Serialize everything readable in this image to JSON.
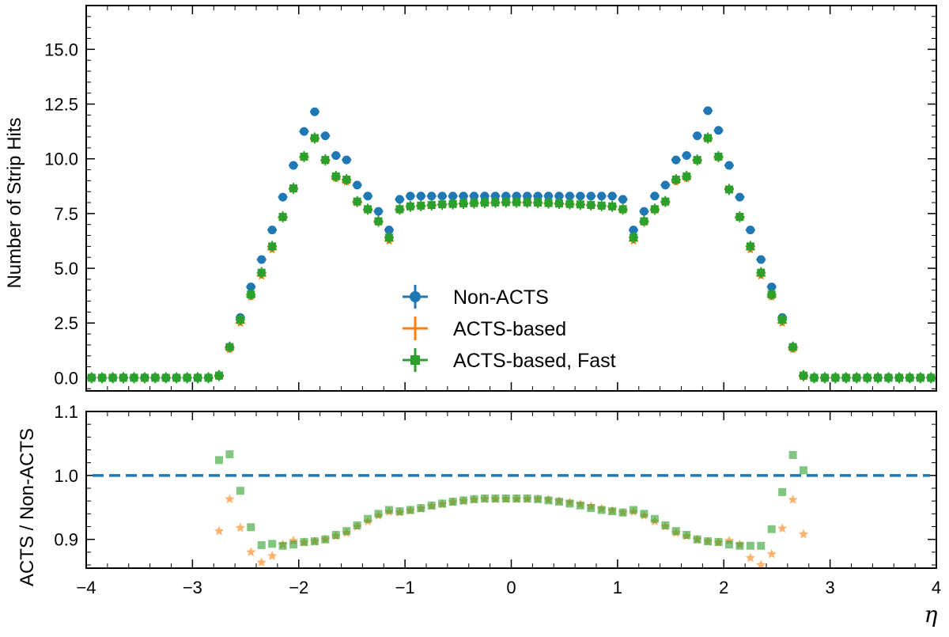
{
  "chart_data": [
    {
      "type": "scatter",
      "panel": "main",
      "ylabel": "Number of Strip Hits",
      "xlim": [
        -4,
        4
      ],
      "ylim": [
        -0.6,
        17
      ],
      "xticks": [
        -4,
        -3,
        -2,
        -1,
        0,
        1,
        2,
        3,
        4
      ],
      "yticks": [
        0.0,
        2.5,
        5.0,
        7.5,
        10.0,
        12.5,
        15.0
      ],
      "ytick_labels": [
        "0.0",
        "2.5",
        "5.0",
        "7.5",
        "10.0",
        "12.5",
        "15.0"
      ],
      "legend_position": "lower center",
      "x": [
        -3.95,
        -3.85,
        -3.75,
        -3.65,
        -3.55,
        -3.45,
        -3.35,
        -3.25,
        -3.15,
        -3.05,
        -2.95,
        -2.85,
        -2.75,
        -2.65,
        -2.55,
        -2.45,
        -2.35,
        -2.25,
        -2.15,
        -2.05,
        -1.95,
        -1.85,
        -1.75,
        -1.65,
        -1.55,
        -1.45,
        -1.35,
        -1.25,
        -1.15,
        -1.05,
        -0.95,
        -0.85,
        -0.75,
        -0.65,
        -0.55,
        -0.45,
        -0.35,
        -0.25,
        -0.15,
        -0.05,
        0.05,
        0.15,
        0.25,
        0.35,
        0.45,
        0.55,
        0.65,
        0.75,
        0.85,
        0.95,
        1.05,
        1.15,
        1.25,
        1.35,
        1.45,
        1.55,
        1.65,
        1.75,
        1.85,
        1.95,
        2.05,
        2.15,
        2.25,
        2.35,
        2.45,
        2.55,
        2.65,
        2.75,
        2.85,
        2.95,
        3.05,
        3.15,
        3.25,
        3.35,
        3.45,
        3.55,
        3.65,
        3.75,
        3.85,
        3.95
      ],
      "series": [
        {
          "name": "Non-ACTS",
          "color": "#1f77b4",
          "marker": "circle",
          "values": [
            0,
            0,
            0,
            0,
            0,
            0,
            0,
            0,
            0,
            0,
            0,
            0,
            0.1,
            1.4,
            2.75,
            4.15,
            5.4,
            6.75,
            8.25,
            9.7,
            11.25,
            12.15,
            11.05,
            10.15,
            9.95,
            8.8,
            8.3,
            7.6,
            6.75,
            8.15,
            8.3,
            8.3,
            8.3,
            8.3,
            8.3,
            8.3,
            8.3,
            8.3,
            8.3,
            8.3,
            8.3,
            8.3,
            8.3,
            8.3,
            8.3,
            8.3,
            8.3,
            8.3,
            8.3,
            8.3,
            8.15,
            6.75,
            7.6,
            8.3,
            8.8,
            9.95,
            10.15,
            11.05,
            12.2,
            11.3,
            9.7,
            8.25,
            6.75,
            5.4,
            4.15,
            2.75,
            1.4,
            0.1,
            0,
            0,
            0,
            0,
            0,
            0,
            0,
            0,
            0,
            0,
            0,
            0
          ]
        },
        {
          "name": "ACTS-based",
          "color": "#ff7f0e",
          "marker": "star",
          "values": [
            0,
            0,
            0,
            0,
            0,
            0,
            0,
            0,
            0,
            0,
            0,
            0,
            0.05,
            1.3,
            2.5,
            3.7,
            4.65,
            5.85,
            7.3,
            8.6,
            10.05,
            10.9,
            9.9,
            9.1,
            8.95,
            8.0,
            7.65,
            7.1,
            6.25,
            7.65,
            7.8,
            7.83,
            7.86,
            7.89,
            7.91,
            7.93,
            7.95,
            7.97,
            7.98,
            7.99,
            7.99,
            7.98,
            7.97,
            7.95,
            7.93,
            7.91,
            7.89,
            7.86,
            7.83,
            7.8,
            7.65,
            6.25,
            7.1,
            7.65,
            8.0,
            8.95,
            9.1,
            9.9,
            10.9,
            10.05,
            8.65,
            7.3,
            5.85,
            4.65,
            3.7,
            2.5,
            1.3,
            0.05,
            0,
            0,
            0,
            0,
            0,
            0,
            0,
            0,
            0,
            0,
            0,
            0
          ]
        },
        {
          "name": "ACTS-based, Fast",
          "color": "#2ca02c",
          "marker": "square",
          "values": [
            0,
            0,
            0,
            0,
            0,
            0,
            0,
            0,
            0,
            0,
            0,
            0,
            0.1,
            1.4,
            2.65,
            3.8,
            4.8,
            6.0,
            7.35,
            8.65,
            10.1,
            10.95,
            9.95,
            9.2,
            9.05,
            8.05,
            7.7,
            7.15,
            6.4,
            7.7,
            7.83,
            7.86,
            7.89,
            7.92,
            7.94,
            7.96,
            7.98,
            8.0,
            8.01,
            8.02,
            8.02,
            8.01,
            8.0,
            7.98,
            7.96,
            7.94,
            7.92,
            7.89,
            7.86,
            7.83,
            7.7,
            6.4,
            7.15,
            7.7,
            8.05,
            9.05,
            9.2,
            9.95,
            10.95,
            10.1,
            8.6,
            7.35,
            6.0,
            4.8,
            3.8,
            2.65,
            1.4,
            0.1,
            0,
            0,
            0,
            0,
            0,
            0,
            0,
            0,
            0,
            0,
            0,
            0
          ]
        }
      ]
    },
    {
      "type": "scatter",
      "panel": "ratio",
      "xlabel": "η",
      "ylabel": "ACTS / Non-ACTS",
      "xlim": [
        -4,
        4
      ],
      "ylim": [
        0.855,
        1.1
      ],
      "xticks": [
        -4,
        -3,
        -2,
        -1,
        0,
        1,
        2,
        3,
        4
      ],
      "xtick_labels": [
        "−4",
        "−3",
        "−2",
        "−1",
        "0",
        "1",
        "2",
        "3",
        "4"
      ],
      "yticks": [
        0.9,
        1.0,
        1.1
      ],
      "ytick_labels": [
        "0.9",
        "1.0",
        "1.1"
      ],
      "reference_line": {
        "y": 1.0,
        "style": "dashed",
        "color": "#1f77b4"
      },
      "x": [
        -2.75,
        -2.65,
        -2.55,
        -2.45,
        -2.35,
        -2.25,
        -2.15,
        -2.05,
        -1.95,
        -1.85,
        -1.75,
        -1.65,
        -1.55,
        -1.45,
        -1.35,
        -1.25,
        -1.15,
        -1.05,
        -0.95,
        -0.85,
        -0.75,
        -0.65,
        -0.55,
        -0.45,
        -0.35,
        -0.25,
        -0.15,
        -0.05,
        0.05,
        0.15,
        0.25,
        0.35,
        0.45,
        0.55,
        0.65,
        0.75,
        0.85,
        0.95,
        1.05,
        1.15,
        1.25,
        1.35,
        1.45,
        1.55,
        1.65,
        1.75,
        1.85,
        1.95,
        2.05,
        2.15,
        2.25,
        2.35,
        2.45,
        2.55,
        2.65,
        2.75
      ],
      "series": [
        {
          "name": "ACTS-based",
          "color": "#ff7f0e",
          "marker": "star",
          "values": [
            0.913,
            0.963,
            0.918,
            0.88,
            0.864,
            0.874,
            0.892,
            0.898,
            0.895,
            0.897,
            0.9,
            0.905,
            0.91,
            0.92,
            0.928,
            0.937,
            0.943,
            0.942,
            0.945,
            0.948,
            0.952,
            0.955,
            0.958,
            0.96,
            0.962,
            0.963,
            0.963,
            0.963,
            0.963,
            0.963,
            0.963,
            0.962,
            0.96,
            0.958,
            0.955,
            0.952,
            0.948,
            0.945,
            0.942,
            0.943,
            0.937,
            0.928,
            0.92,
            0.91,
            0.905,
            0.9,
            0.897,
            0.895,
            0.898,
            0.892,
            0.871,
            0.86,
            0.877,
            0.917,
            0.962,
            0.908
          ]
        },
        {
          "name": "ACTS-based, Fast",
          "color": "#2ca02c",
          "marker": "square",
          "values": [
            1.024,
            1.033,
            0.976,
            0.919,
            0.891,
            0.893,
            0.89,
            0.892,
            0.896,
            0.897,
            0.9,
            0.907,
            0.913,
            0.922,
            0.932,
            0.94,
            0.946,
            0.944,
            0.946,
            0.949,
            0.953,
            0.956,
            0.959,
            0.961,
            0.963,
            0.964,
            0.964,
            0.964,
            0.964,
            0.964,
            0.963,
            0.961,
            0.959,
            0.956,
            0.953,
            0.949,
            0.946,
            0.944,
            0.942,
            0.946,
            0.94,
            0.932,
            0.922,
            0.913,
            0.907,
            0.9,
            0.897,
            0.896,
            0.892,
            0.89,
            0.89,
            0.89,
            0.916,
            0.974,
            1.032,
            1.008
          ]
        }
      ]
    }
  ]
}
